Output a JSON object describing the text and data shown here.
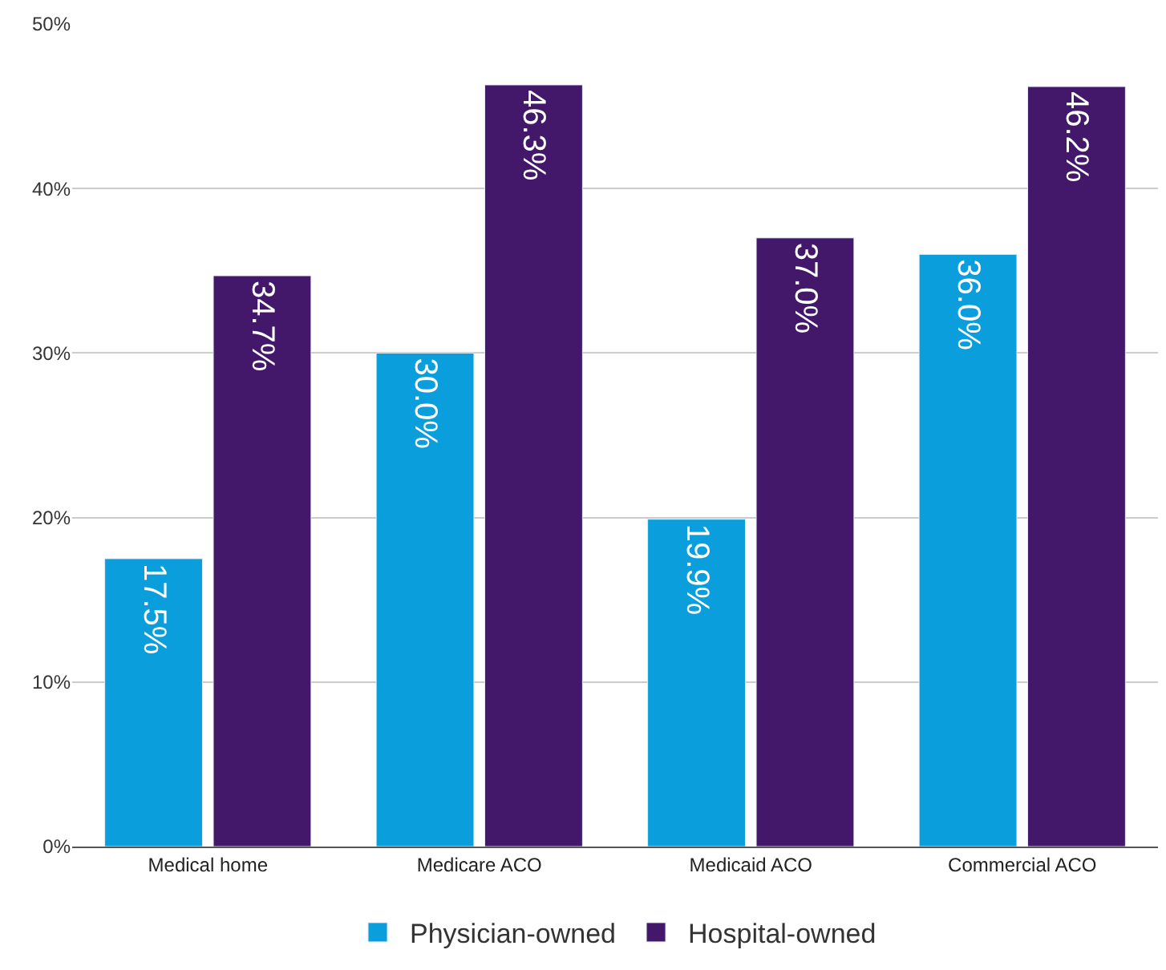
{
  "chart_data": {
    "type": "bar",
    "categories": [
      "Medical home",
      "Medicare ACO",
      "Medicaid ACO",
      "Commercial ACO"
    ],
    "series": [
      {
        "name": "Physician-owned",
        "color": "#0a9fdc",
        "values": [
          17.5,
          30.0,
          19.9,
          36.0
        ],
        "value_labels": [
          "17.5%",
          "30.0%",
          "19.9%",
          "36.0%"
        ]
      },
      {
        "name": "Hospital-owned",
        "color": "#43176a",
        "values": [
          34.7,
          46.3,
          37.0,
          46.2
        ],
        "value_labels": [
          "34.7%",
          "46.3%",
          "37.0%",
          "46.2%"
        ]
      }
    ],
    "ylim": [
      0,
      50
    ],
    "yticks": [
      {
        "value": 0,
        "label": "0%"
      },
      {
        "value": 10,
        "label": "10%"
      },
      {
        "value": 20,
        "label": "20%"
      },
      {
        "value": 30,
        "label": "30%"
      },
      {
        "value": 40,
        "label": "40%"
      },
      {
        "value": 50,
        "label": "50%"
      }
    ],
    "grid": "y",
    "legend": "bottom"
  }
}
